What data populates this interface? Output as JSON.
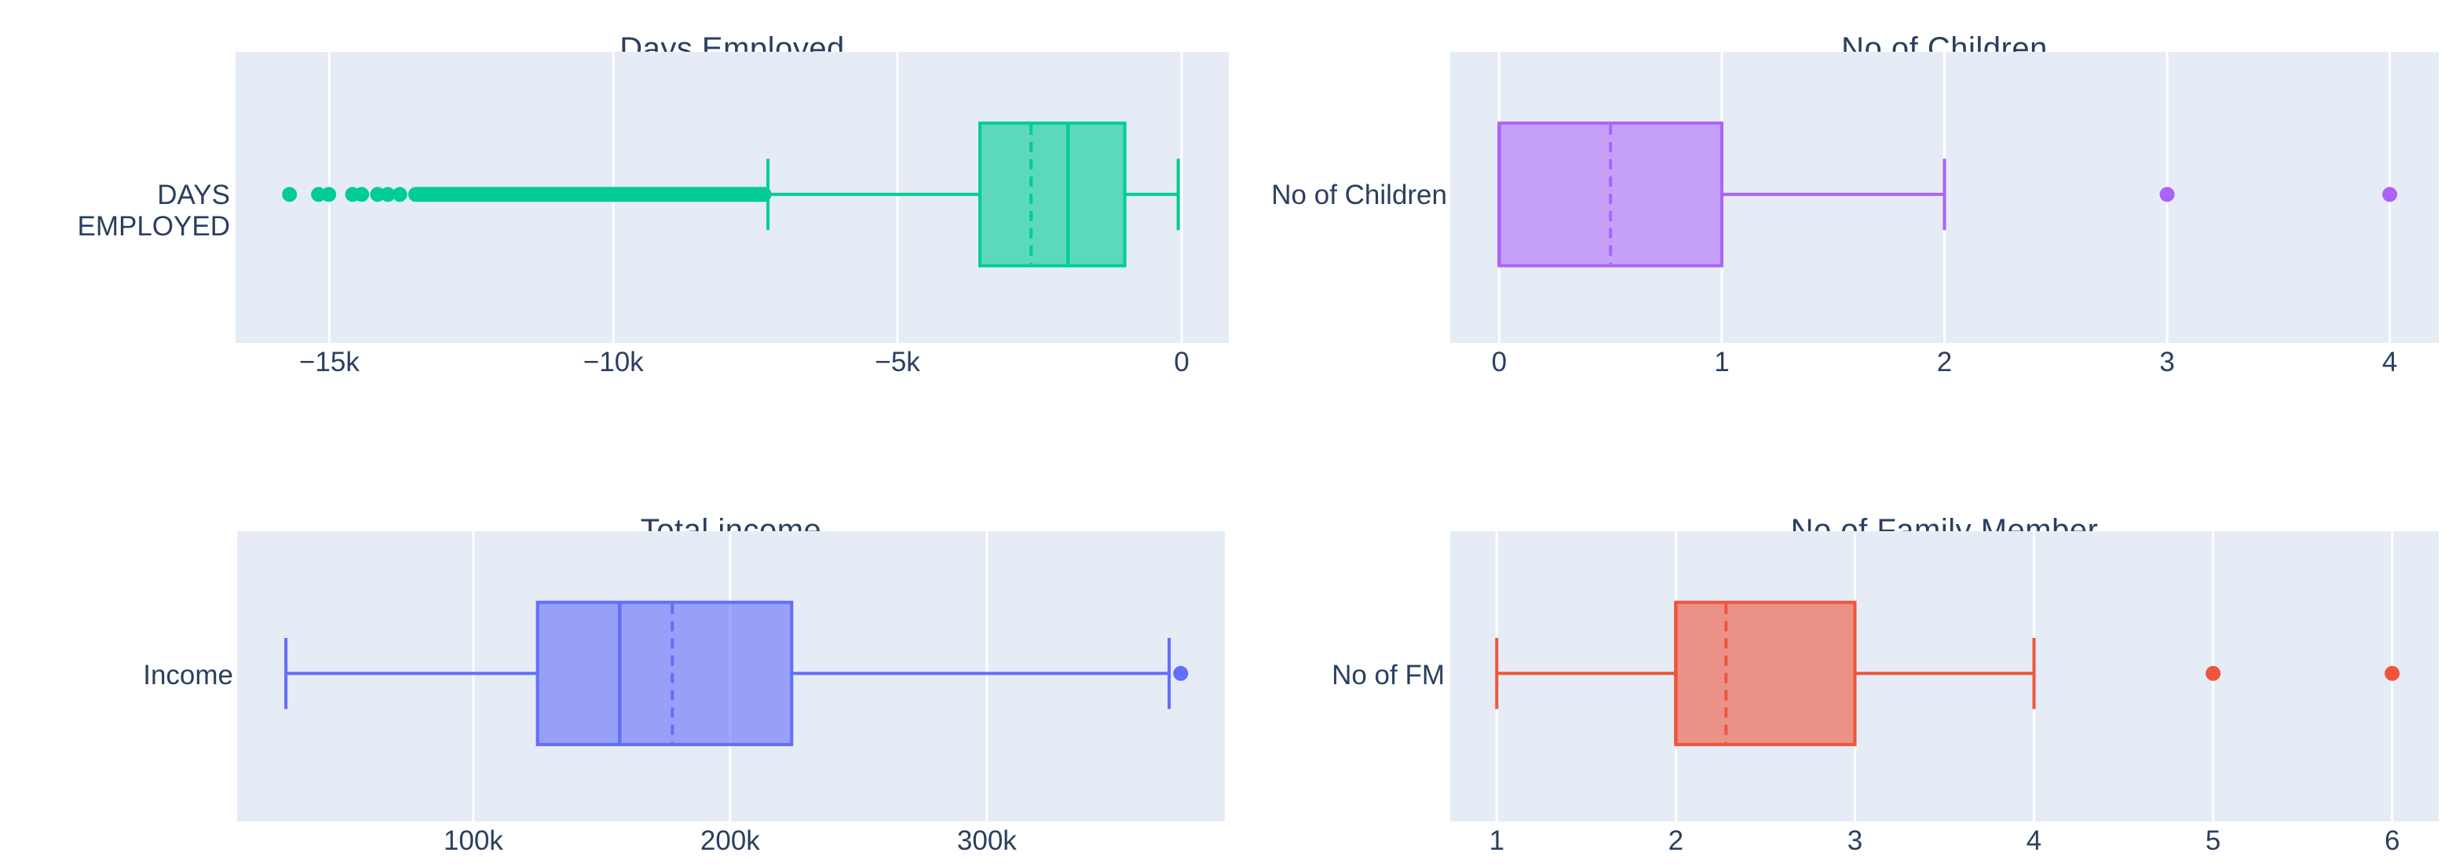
{
  "theme": {
    "page_bg": "#ffffff",
    "plot_bg": "#e5ecf6",
    "gridline": "#ffffff",
    "text_color": "#2a3f5f"
  },
  "chart_data": [
    {
      "type": "box",
      "orientation": "horizontal",
      "title": "Days Employed",
      "y_label": "DAYS EMPLOYED",
      "color": "#00cc96",
      "fill": "rgba(0,204,150,0.6)",
      "axis": {
        "range": [
          -16650,
          830
        ],
        "grid": true,
        "ticks": [
          {
            "v": -15000,
            "label": "−15k"
          },
          {
            "v": -10000,
            "label": "−10k"
          },
          {
            "v": -5000,
            "label": "−5k"
          },
          {
            "v": 0,
            "label": "0"
          }
        ]
      },
      "box": {
        "whisker_low": -7280,
        "q1": -3550,
        "median": -2000,
        "mean": -2650,
        "q3": -1000,
        "whisker_high": -60
      },
      "mean_style": "dashed",
      "outliers": [
        -15700,
        -15190,
        -15010,
        -14590,
        -14430,
        -14150,
        -13970,
        -13760
      ],
      "outlier_band": [
        -13480,
        -7350
      ]
    },
    {
      "type": "box",
      "orientation": "horizontal",
      "title": "No of Children",
      "y_label": "No of Children",
      "color": "#ab63fa",
      "fill": "rgba(171,99,250,0.55)",
      "axis": {
        "range": [
          -0.22,
          4.22
        ],
        "grid": true,
        "ticks": [
          {
            "v": 0,
            "label": "0"
          },
          {
            "v": 1,
            "label": "1"
          },
          {
            "v": 2,
            "label": "2"
          },
          {
            "v": 3,
            "label": "3"
          },
          {
            "v": 4,
            "label": "4"
          }
        ]
      },
      "box": {
        "whisker_low": 0,
        "q1": 0,
        "median": 0,
        "mean": 0.5,
        "q3": 1,
        "whisker_high": 2
      },
      "mean_style": "dashed",
      "outliers": [
        3,
        4
      ]
    },
    {
      "type": "box",
      "orientation": "horizontal",
      "title": "Total income",
      "y_label": "Income",
      "color": "#636efa",
      "fill": "rgba(99,110,250,0.6)",
      "axis": {
        "range": [
          8000,
          392700
        ],
        "grid": true,
        "ticks": [
          {
            "v": 100000,
            "label": "100k"
          },
          {
            "v": 200000,
            "label": "200k"
          },
          {
            "v": 300000,
            "label": "300k"
          }
        ]
      },
      "box": {
        "whisker_low": 27000,
        "q1": 125000,
        "median": 157000,
        "mean": 177500,
        "q3": 224000,
        "whisker_high": 371000
      },
      "mean_style": "dashed",
      "outliers": [
        375500
      ]
    },
    {
      "type": "box",
      "orientation": "horizontal",
      "title": "No of Family Member",
      "y_label": "No of FM",
      "color": "#ef553b",
      "fill": "rgba(239,85,59,0.6)",
      "axis": {
        "range": [
          0.74,
          6.26
        ],
        "grid": true,
        "ticks": [
          {
            "v": 1,
            "label": "1"
          },
          {
            "v": 2,
            "label": "2"
          },
          {
            "v": 3,
            "label": "3"
          },
          {
            "v": 4,
            "label": "4"
          },
          {
            "v": 5,
            "label": "5"
          },
          {
            "v": 6,
            "label": "6"
          }
        ]
      },
      "box": {
        "whisker_low": 1,
        "q1": 2,
        "median": 2,
        "mean": 2.28,
        "q3": 3,
        "whisker_high": 4
      },
      "mean_style": "dashed",
      "outliers": [
        5,
        6
      ]
    }
  ]
}
